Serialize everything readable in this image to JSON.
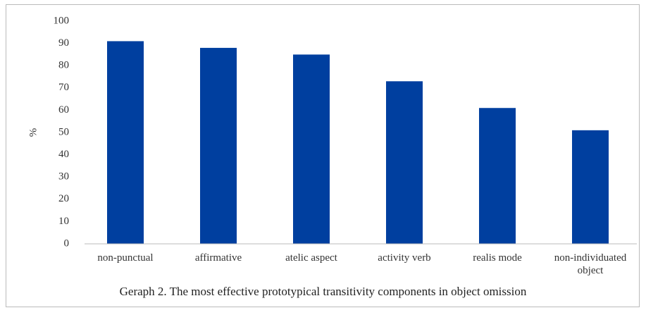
{
  "chart_data": {
    "type": "bar",
    "title": "Geraph 2. The most effective prototypical transitivity components in object omission",
    "y_label": "%",
    "categories": [
      "non-punctual",
      "affirmative",
      "atelic aspect",
      "activity verb",
      "realis mode",
      "non-individuated object"
    ],
    "values": [
      91,
      88,
      85,
      73,
      61,
      51
    ],
    "color": "#003f9f",
    "ylim": [
      0,
      100
    ],
    "yticks": [
      0,
      10,
      20,
      30,
      40,
      50,
      60,
      70,
      80,
      90,
      100
    ],
    "grid": false
  }
}
